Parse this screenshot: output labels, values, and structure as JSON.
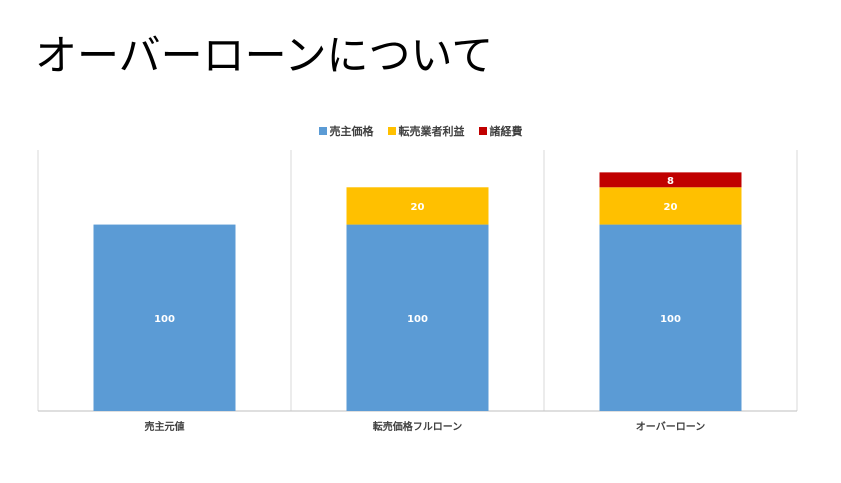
{
  "slide": {
    "title": "オーバーローンについて"
  },
  "chart_data": {
    "type": "bar",
    "stacked": true,
    "categories": [
      "売主元値",
      "転売価格フルローン",
      "オーバーローン"
    ],
    "series": [
      {
        "name": "売主価格",
        "color": "#5B9BD5",
        "values": [
          100,
          100,
          100
        ]
      },
      {
        "name": "転売業者利益",
        "color": "#FFC000",
        "values": [
          null,
          20,
          20
        ]
      },
      {
        "name": "諸経費",
        "color": "#C00000",
        "values": [
          null,
          null,
          8
        ]
      }
    ],
    "ylim": [
      0,
      140
    ],
    "legend": "top",
    "grid": "vertical-category-dividers"
  }
}
